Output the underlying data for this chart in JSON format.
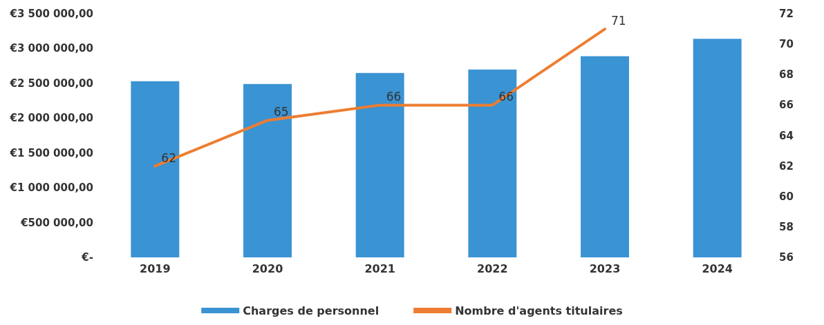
{
  "chart_data": {
    "type": "bar",
    "categories": [
      "2019",
      "2020",
      "2021",
      "2022",
      "2023",
      "2024"
    ],
    "series": [
      {
        "name": "Charges de personnel",
        "color": "#3a93d3",
        "values": [
          2530000,
          2490000,
          2650000,
          2700000,
          2890000,
          3140000
        ]
      },
      {
        "name": "Nombre d'agents titulaires",
        "type": "line",
        "axis": "y2",
        "color": "#ed7d31",
        "values": [
          62,
          65,
          66,
          66,
          71,
          null
        ],
        "value_labels": [
          "62",
          "65",
          "66",
          "66",
          "71",
          null
        ]
      }
    ],
    "ylim": [
      0,
      3500000
    ],
    "yticks": [
      {
        "value": 0,
        "label": "€-"
      },
      {
        "value": 500000,
        "label": "€500 000,00"
      },
      {
        "value": 1000000,
        "label": "€1 000 000,00"
      },
      {
        "value": 1500000,
        "label": "€1 500 000,00"
      },
      {
        "value": 2000000,
        "label": "€2 000 000,00"
      },
      {
        "value": 2500000,
        "label": "€2 500 000,00"
      },
      {
        "value": 3000000,
        "label": "€3 000 000,00"
      },
      {
        "value": 3500000,
        "label": "€3 500 000,00"
      }
    ],
    "y2lim": [
      56,
      72
    ],
    "y2ticks": [
      56,
      58,
      60,
      62,
      64,
      66,
      68,
      70,
      72
    ],
    "grid": false,
    "legend": "bottom",
    "marker": "none"
  }
}
